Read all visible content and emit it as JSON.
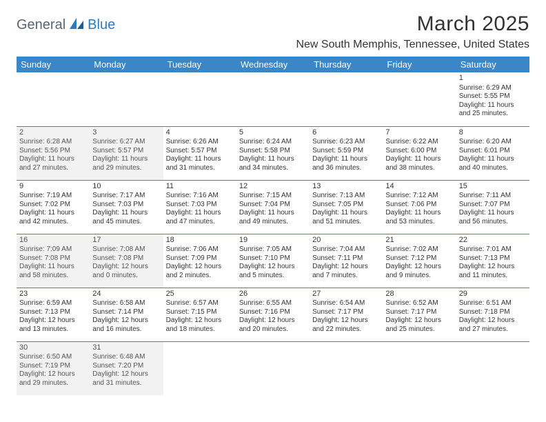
{
  "logo": {
    "part1": "General",
    "part2": "Blue"
  },
  "title": "March 2025",
  "location": "New South Memphis, Tennessee, United States",
  "colors": {
    "header_bg": "#3b86c6",
    "header_text": "#ffffff",
    "border": "#3b86c6",
    "offmonth_bg": "#f2f2f2",
    "logo_gray": "#5a6570",
    "logo_blue": "#2b7bbf"
  },
  "day_headers": [
    "Sunday",
    "Monday",
    "Tuesday",
    "Wednesday",
    "Thursday",
    "Friday",
    "Saturday"
  ],
  "weeks": [
    [
      {
        "blank": true
      },
      {
        "blank": true
      },
      {
        "blank": true
      },
      {
        "blank": true
      },
      {
        "blank": true
      },
      {
        "blank": true
      },
      {
        "n": "1",
        "sunrise": "6:29 AM",
        "sunset": "5:55 PM",
        "day": "11 hours and 25 minutes."
      }
    ],
    [
      {
        "n": "2",
        "off": true,
        "sunrise": "6:28 AM",
        "sunset": "5:56 PM",
        "day": "11 hours and 27 minutes."
      },
      {
        "n": "3",
        "off": true,
        "sunrise": "6:27 AM",
        "sunset": "5:57 PM",
        "day": "11 hours and 29 minutes."
      },
      {
        "n": "4",
        "sunrise": "6:26 AM",
        "sunset": "5:57 PM",
        "day": "11 hours and 31 minutes."
      },
      {
        "n": "5",
        "sunrise": "6:24 AM",
        "sunset": "5:58 PM",
        "day": "11 hours and 34 minutes."
      },
      {
        "n": "6",
        "sunrise": "6:23 AM",
        "sunset": "5:59 PM",
        "day": "11 hours and 36 minutes."
      },
      {
        "n": "7",
        "sunrise": "6:22 AM",
        "sunset": "6:00 PM",
        "day": "11 hours and 38 minutes."
      },
      {
        "n": "8",
        "sunrise": "6:20 AM",
        "sunset": "6:01 PM",
        "day": "11 hours and 40 minutes."
      }
    ],
    [
      {
        "n": "9",
        "sunrise": "7:19 AM",
        "sunset": "7:02 PM",
        "day": "11 hours and 42 minutes."
      },
      {
        "n": "10",
        "sunrise": "7:17 AM",
        "sunset": "7:03 PM",
        "day": "11 hours and 45 minutes."
      },
      {
        "n": "11",
        "sunrise": "7:16 AM",
        "sunset": "7:03 PM",
        "day": "11 hours and 47 minutes."
      },
      {
        "n": "12",
        "sunrise": "7:15 AM",
        "sunset": "7:04 PM",
        "day": "11 hours and 49 minutes."
      },
      {
        "n": "13",
        "sunrise": "7:13 AM",
        "sunset": "7:05 PM",
        "day": "11 hours and 51 minutes."
      },
      {
        "n": "14",
        "sunrise": "7:12 AM",
        "sunset": "7:06 PM",
        "day": "11 hours and 53 minutes."
      },
      {
        "n": "15",
        "sunrise": "7:11 AM",
        "sunset": "7:07 PM",
        "day": "11 hours and 56 minutes."
      }
    ],
    [
      {
        "n": "16",
        "off": true,
        "sunrise": "7:09 AM",
        "sunset": "7:08 PM",
        "day": "11 hours and 58 minutes."
      },
      {
        "n": "17",
        "off": true,
        "sunrise": "7:08 AM",
        "sunset": "7:08 PM",
        "day": "12 hours and 0 minutes."
      },
      {
        "n": "18",
        "sunrise": "7:06 AM",
        "sunset": "7:09 PM",
        "day": "12 hours and 2 minutes."
      },
      {
        "n": "19",
        "sunrise": "7:05 AM",
        "sunset": "7:10 PM",
        "day": "12 hours and 5 minutes."
      },
      {
        "n": "20",
        "sunrise": "7:04 AM",
        "sunset": "7:11 PM",
        "day": "12 hours and 7 minutes."
      },
      {
        "n": "21",
        "sunrise": "7:02 AM",
        "sunset": "7:12 PM",
        "day": "12 hours and 9 minutes."
      },
      {
        "n": "22",
        "sunrise": "7:01 AM",
        "sunset": "7:13 PM",
        "day": "12 hours and 11 minutes."
      }
    ],
    [
      {
        "n": "23",
        "sunrise": "6:59 AM",
        "sunset": "7:13 PM",
        "day": "12 hours and 13 minutes."
      },
      {
        "n": "24",
        "sunrise": "6:58 AM",
        "sunset": "7:14 PM",
        "day": "12 hours and 16 minutes."
      },
      {
        "n": "25",
        "sunrise": "6:57 AM",
        "sunset": "7:15 PM",
        "day": "12 hours and 18 minutes."
      },
      {
        "n": "26",
        "sunrise": "6:55 AM",
        "sunset": "7:16 PM",
        "day": "12 hours and 20 minutes."
      },
      {
        "n": "27",
        "sunrise": "6:54 AM",
        "sunset": "7:17 PM",
        "day": "12 hours and 22 minutes."
      },
      {
        "n": "28",
        "sunrise": "6:52 AM",
        "sunset": "7:17 PM",
        "day": "12 hours and 25 minutes."
      },
      {
        "n": "29",
        "sunrise": "6:51 AM",
        "sunset": "7:18 PM",
        "day": "12 hours and 27 minutes."
      }
    ],
    [
      {
        "n": "30",
        "off": true,
        "sunrise": "6:50 AM",
        "sunset": "7:19 PM",
        "day": "12 hours and 29 minutes."
      },
      {
        "n": "31",
        "off": true,
        "sunrise": "6:48 AM",
        "sunset": "7:20 PM",
        "day": "12 hours and 31 minutes."
      },
      {
        "blank": true
      },
      {
        "blank": true
      },
      {
        "blank": true
      },
      {
        "blank": true
      },
      {
        "blank": true
      }
    ]
  ],
  "labels": {
    "sunrise": "Sunrise: ",
    "sunset": "Sunset: ",
    "daylight": "Daylight: "
  }
}
